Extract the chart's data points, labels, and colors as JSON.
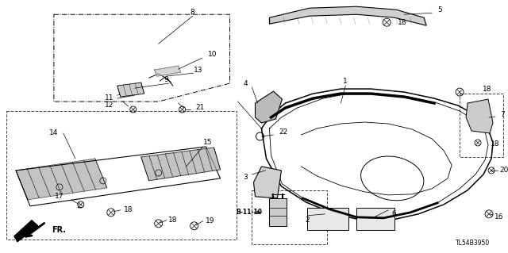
{
  "diagram_ref": "TL54B3950",
  "background_color": "#ffffff",
  "fig_width": 6.4,
  "fig_height": 3.19,
  "dpi": 100
}
